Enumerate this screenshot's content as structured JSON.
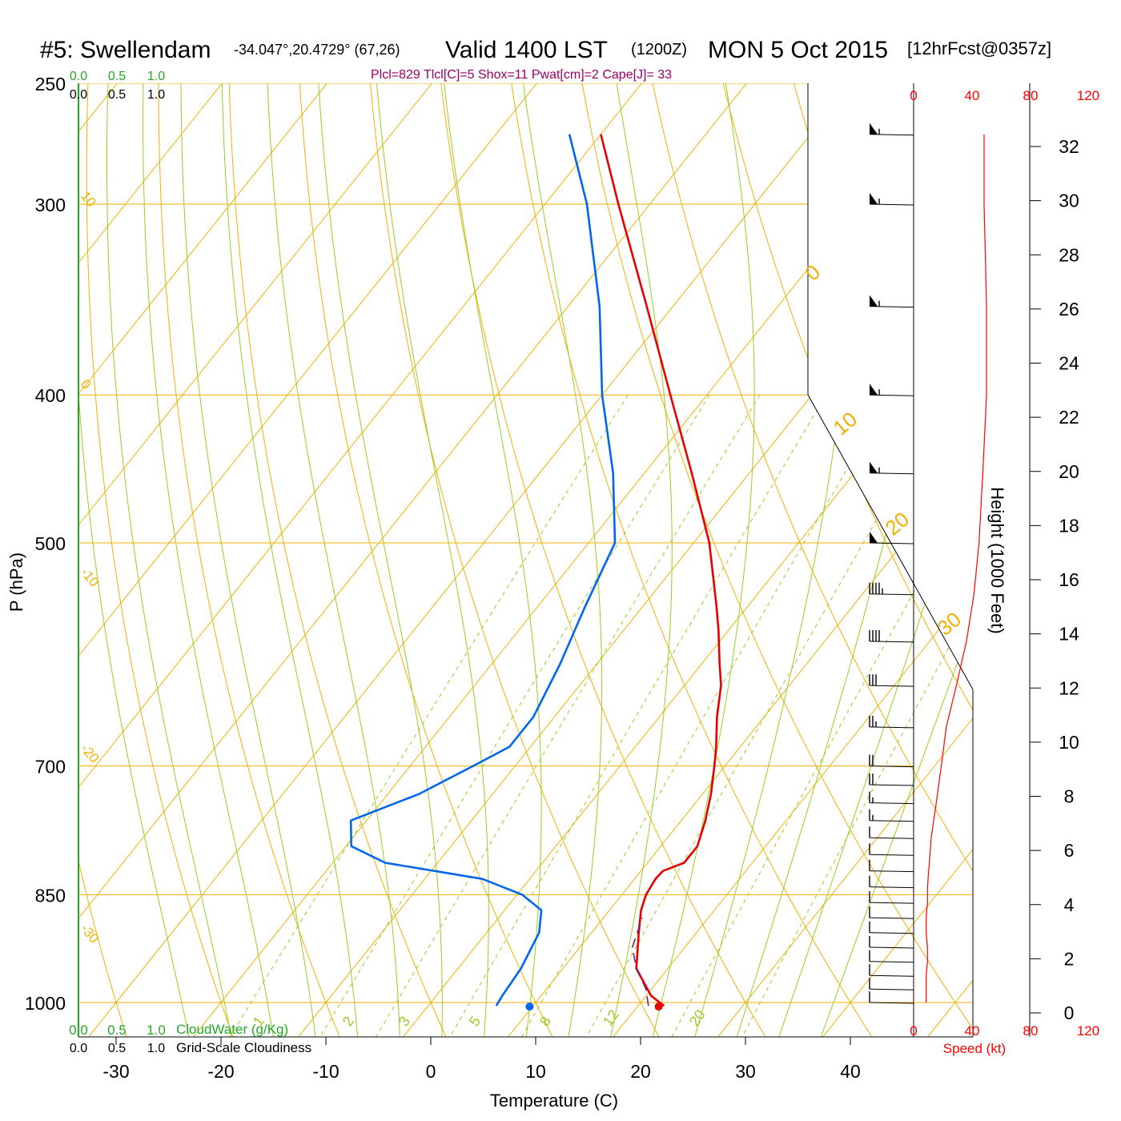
{
  "header": {
    "station": "#5: Swellendam",
    "coords": "-34.047°,20.4729° (67,26)",
    "valid": "Valid 1400 LST",
    "utc": "(1200Z)",
    "date": "MON 5 Oct 2015",
    "forecast": "[12hrFcst@0357z]",
    "indices": "Plcl=829 Tlcl[C]=5 Shox=11 Pwat[cm]=2 Cape[J]= 33"
  },
  "colors": {
    "temperature": "#e60000",
    "dewpoint": "#0066ee",
    "isotherm": "#f0b000",
    "dry_adiabat": "#f0b000",
    "moist_adiabat": "#99cc22",
    "mixing_ratio": "#99cc22",
    "parcel": "#7a1a6a",
    "indices_text": "#990066",
    "cloud_scale": "#22aa22",
    "speed_scale": "#ff0000"
  },
  "chart_data": {
    "type": "line",
    "title": "#5: Swellendam Valid 1400 LST (1200Z) MON 5 Oct 2015",
    "xlabel": "Temperature (C)",
    "ylabel": "P (hPa)",
    "height_axis_label": "Height (1000 Feet)",
    "x_ticks": [
      "-30",
      "-20",
      "-10",
      "0",
      "10",
      "20",
      "30",
      "40"
    ],
    "p_ticks": [
      "250",
      "300",
      "400",
      "500",
      "700",
      "850",
      "1000"
    ],
    "height_ticks": [
      "0",
      "2",
      "4",
      "6",
      "8",
      "10",
      "12",
      "14",
      "16",
      "18",
      "20",
      "22",
      "24",
      "26",
      "28",
      "30",
      "32"
    ],
    "speed_ticks": [
      "0",
      "40",
      "80",
      "120"
    ],
    "speed_label": "Speed (kt)",
    "cloud_scale_top_green": [
      "0.0",
      "0.5",
      "1.0"
    ],
    "cloud_scale_top_black": [
      "0.0",
      "0.5",
      "1.0"
    ],
    "cloud_scale_bottom_green": [
      "0.0",
      "0.5",
      "1.0"
    ],
    "cloud_scale_bottom_black": [
      "0.0",
      "0.5",
      "1.0"
    ],
    "cloudwater_label": "CloudWater (g/Kg)",
    "cloudiness_label": "Grid-Scale Cloudiness",
    "isotherm_labels_left": [
      "10",
      "0",
      "-10",
      "-20",
      "-30"
    ],
    "isotherm_labels_right": [
      "0",
      "10",
      "20",
      "30"
    ],
    "mixing_ratio_labels": [
      "1",
      "2",
      "3",
      "5",
      "8",
      "12",
      "20"
    ],
    "ylim": [
      250,
      1000
    ],
    "xlim_surface": [
      -33,
      42
    ],
    "series": [
      {
        "name": "Temperature",
        "points": [
          [
            1005,
            22.5
          ],
          [
            990,
            20.5
          ],
          [
            950,
            17.0
          ],
          [
            900,
            14.5
          ],
          [
            870,
            13.0
          ],
          [
            850,
            12.3
          ],
          [
            830,
            12.0
          ],
          [
            820,
            12.1
          ],
          [
            810,
            13.5
          ],
          [
            790,
            13.5
          ],
          [
            760,
            12.3
          ],
          [
            730,
            10.8
          ],
          [
            700,
            9.0
          ],
          [
            680,
            7.7
          ],
          [
            650,
            5.5
          ],
          [
            620,
            3.5
          ],
          [
            600,
            1.7
          ],
          [
            570,
            -1.0
          ],
          [
            550,
            -3.0
          ],
          [
            500,
            -8.5
          ],
          [
            450,
            -15.5
          ],
          [
            400,
            -23.5
          ],
          [
            350,
            -32.5
          ],
          [
            300,
            -43.0
          ],
          [
            270,
            -50.0
          ]
        ]
      },
      {
        "name": "Dewpoint",
        "points": [
          [
            1005,
            6.5
          ],
          [
            990,
            6.3
          ],
          [
            950,
            6.0
          ],
          [
            900,
            5.0
          ],
          [
            870,
            3.5
          ],
          [
            850,
            0.5
          ],
          [
            830,
            -4.5
          ],
          [
            810,
            -15.0
          ],
          [
            790,
            -19.5
          ],
          [
            760,
            -21.5
          ],
          [
            730,
            -17.0
          ],
          [
            700,
            -14.0
          ],
          [
            680,
            -12.0
          ],
          [
            650,
            -12.0
          ],
          [
            600,
            -13.5
          ],
          [
            550,
            -15.5
          ],
          [
            500,
            -17.5
          ],
          [
            450,
            -23.0
          ],
          [
            400,
            -30.0
          ],
          [
            350,
            -37.0
          ],
          [
            300,
            -46.0
          ],
          [
            270,
            -53.0
          ]
        ]
      },
      {
        "name": "Parcel",
        "points": [
          [
            1005,
            21.0
          ],
          [
            980,
            19.5
          ],
          [
            950,
            17.0
          ],
          [
            920,
            15.0
          ],
          [
            880,
            13.7
          ]
        ]
      }
    ],
    "surface_markers": {
      "temperature": 23.5,
      "dewpoint": 11.2
    },
    "wind_profile_kt": [
      [
        1000,
        10
      ],
      [
        980,
        10
      ],
      [
        960,
        10
      ],
      [
        940,
        11
      ],
      [
        920,
        11
      ],
      [
        900,
        10
      ],
      [
        880,
        10
      ],
      [
        860,
        11
      ],
      [
        840,
        11
      ],
      [
        820,
        12
      ],
      [
        800,
        13
      ],
      [
        780,
        14
      ],
      [
        760,
        16
      ],
      [
        740,
        18
      ],
      [
        720,
        20
      ],
      [
        700,
        22
      ],
      [
        660,
        26
      ],
      [
        620,
        34
      ],
      [
        580,
        42
      ],
      [
        540,
        48
      ],
      [
        500,
        52
      ],
      [
        450,
        55
      ],
      [
        400,
        58
      ],
      [
        350,
        58
      ],
      [
        300,
        56
      ],
      [
        270,
        56
      ]
    ]
  }
}
